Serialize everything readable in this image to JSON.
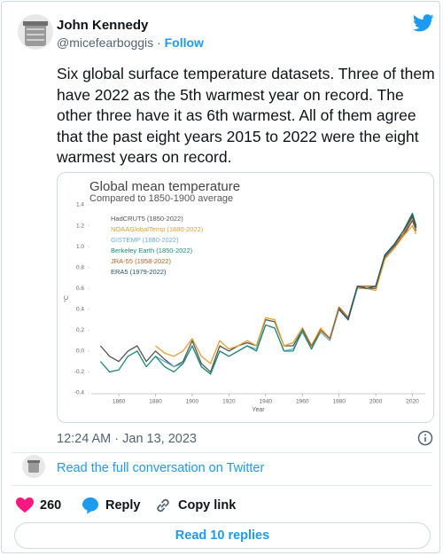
{
  "tweet": {
    "author_name": "John Kennedy",
    "handle": "@micefearboggis",
    "separator": "·",
    "follow": "Follow",
    "text": "Six global surface temperature datasets. Three of them have 2022 as the 5th warmest year on record. The other three have it as 6th warmest. All of them agree that the past eight years 2015 to 2022 were the eight warmest years on record.",
    "timestamp": "12:24 AM · Jan 13, 2023",
    "conversation_link": "Read the full conversation on Twitter",
    "likes": "260",
    "reply": "Reply",
    "copy_link": "Copy link",
    "read_replies": "Read 10 replies"
  },
  "chart_data": {
    "type": "line",
    "title": "Global mean temperature",
    "subtitle": "Compared to 1850-1900 average",
    "x_label": "Year",
    "y_label": "°C",
    "legend": "upper left",
    "grid": false,
    "xlim": [
      1845,
      2027
    ],
    "xticks": [
      1860,
      1880,
      1900,
      1920,
      1940,
      1960,
      1980,
      2000,
      2020
    ],
    "ylim": [
      -0.4,
      1.4
    ],
    "yticks": [
      -0.4,
      -0.2,
      {
        "value": 0,
        "label": "0.0"
      },
      0.2,
      0.4,
      0.6,
      0.8,
      {
        "value": 1,
        "label": "1.0"
      },
      1.2,
      1.4
    ],
    "x": [
      1850,
      1855,
      1860,
      1865,
      1870,
      1875,
      1880,
      1885,
      1890,
      1895,
      1900,
      1905,
      1910,
      1915,
      1920,
      1925,
      1930,
      1935,
      1940,
      1945,
      1950,
      1955,
      1960,
      1965,
      1970,
      1975,
      1980,
      1985,
      1990,
      1995,
      2000,
      2005,
      2010,
      2015,
      2020,
      2022
    ],
    "series": [
      {
        "name": "HadCRUT5 (1850-2022)",
        "color": "#555555",
        "values": [
          0.05,
          -0.05,
          -0.1,
          0.0,
          0.05,
          -0.1,
          0.0,
          -0.08,
          -0.15,
          -0.1,
          0.1,
          -0.12,
          -0.2,
          0.05,
          0.0,
          0.05,
          0.08,
          0.05,
          0.3,
          0.28,
          0.05,
          0.05,
          0.2,
          0.05,
          0.2,
          0.12,
          0.4,
          0.3,
          0.62,
          0.6,
          0.6,
          0.9,
          1.0,
          1.1,
          1.25,
          1.15
        ]
      },
      {
        "name": "NOAAGlobalTemp (1880-2022)",
        "color": "#e0a230",
        "values": [
          null,
          null,
          null,
          null,
          null,
          null,
          0.05,
          -0.02,
          -0.05,
          0.0,
          0.12,
          -0.05,
          -0.12,
          0.1,
          0.02,
          0.05,
          0.1,
          0.05,
          0.32,
          0.3,
          0.05,
          0.08,
          0.22,
          0.05,
          0.22,
          0.12,
          0.42,
          0.32,
          0.6,
          0.6,
          0.58,
          0.88,
          0.98,
          1.1,
          1.2,
          1.12
        ]
      },
      {
        "name": "GISTEMP (1880-2022)",
        "color": "#6baed6",
        "values": [
          null,
          null,
          null,
          null,
          null,
          null,
          -0.05,
          -0.1,
          -0.15,
          -0.12,
          0.05,
          -0.15,
          -0.22,
          0.0,
          -0.05,
          0.0,
          0.05,
          0.02,
          0.25,
          0.22,
          0.0,
          0.02,
          0.18,
          0.02,
          0.18,
          0.1,
          0.4,
          0.3,
          0.6,
          0.62,
          0.62,
          0.92,
          1.02,
          1.12,
          1.3,
          1.18
        ]
      },
      {
        "name": "Berkeley Earth (1850-2022)",
        "color": "#1f8a70",
        "values": [
          -0.1,
          -0.2,
          -0.18,
          -0.05,
          0.0,
          -0.15,
          -0.05,
          -0.15,
          -0.2,
          -0.12,
          0.05,
          -0.15,
          -0.22,
          0.0,
          -0.05,
          0.0,
          0.05,
          0.0,
          0.25,
          0.22,
          0.0,
          0.0,
          0.2,
          0.02,
          0.2,
          0.12,
          0.42,
          0.32,
          0.62,
          0.62,
          0.62,
          0.92,
          1.02,
          1.15,
          1.32,
          1.2
        ]
      },
      {
        "name": "JRA-55 (1958-2022)",
        "color": "#b5651d",
        "values": [
          null,
          null,
          null,
          null,
          null,
          null,
          null,
          null,
          null,
          null,
          null,
          null,
          null,
          null,
          null,
          null,
          null,
          null,
          null,
          null,
          null,
          null,
          0.22,
          0.05,
          0.2,
          0.12,
          0.42,
          0.32,
          0.62,
          0.62,
          0.62,
          0.92,
          1.02,
          1.12,
          1.28,
          1.15
        ]
      },
      {
        "name": "ERA5 (1979-2022)",
        "color": "#24546a",
        "values": [
          null,
          null,
          null,
          null,
          null,
          null,
          null,
          null,
          null,
          null,
          null,
          null,
          null,
          null,
          null,
          null,
          null,
          null,
          null,
          null,
          null,
          null,
          null,
          null,
          null,
          null,
          0.4,
          0.3,
          0.62,
          0.6,
          0.62,
          0.92,
          1.02,
          1.15,
          1.3,
          1.18
        ]
      }
    ]
  }
}
